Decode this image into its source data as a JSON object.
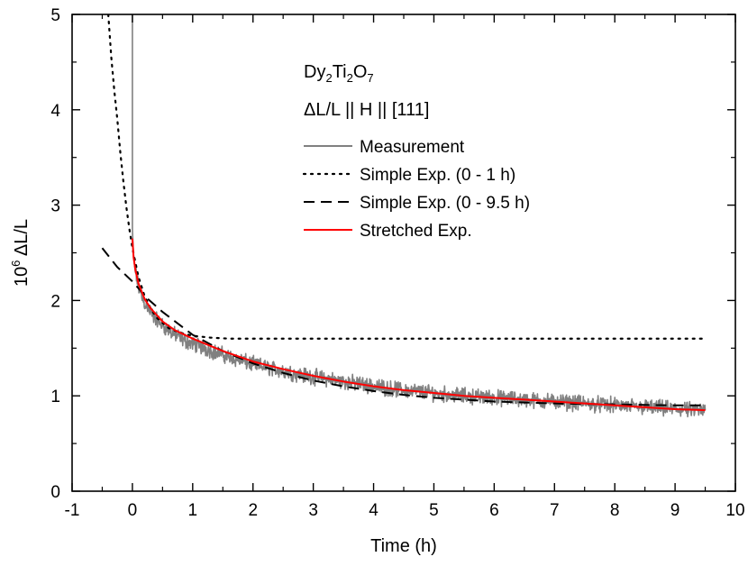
{
  "chart_data": {
    "type": "line",
    "xlabel": "Time (h)",
    "ylabel": "10^6 ΔL/L",
    "ylabel_parts": {
      "prefix": "10",
      "sup": "6",
      "rest": " ΔL/L"
    },
    "xlim": [
      -1,
      10
    ],
    "ylim": [
      0,
      5
    ],
    "x_ticks": [
      -1,
      0,
      1,
      2,
      3,
      4,
      5,
      6,
      7,
      8,
      9,
      10
    ],
    "x_tick_labels": [
      "-1",
      "0",
      "1",
      "2",
      "3",
      "4",
      "5",
      "6",
      "7",
      "8",
      "9",
      "10"
    ],
    "y_ticks": [
      0,
      1,
      2,
      3,
      4,
      5
    ],
    "y_tick_labels": [
      "0",
      "1",
      "2",
      "3",
      "4",
      "5"
    ],
    "grid": false,
    "legend_position": "top-right",
    "annotations": [
      {
        "id": "compound",
        "parts": [
          "Dy",
          "2",
          "Ti",
          "2",
          "O",
          "7"
        ]
      },
      {
        "id": "geometry",
        "text": "ΔL/L || H || [111]"
      }
    ],
    "series": [
      {
        "name": "Measurement",
        "style": "solid",
        "color": "#808080",
        "noise_amplitude": 0.1,
        "x": [
          0.0,
          0.0,
          0.01,
          0.03,
          0.05,
          0.1,
          0.15,
          0.2,
          0.3,
          0.4,
          0.5,
          0.7,
          0.9,
          1.2,
          1.5,
          2.0,
          2.5,
          3.0,
          3.5,
          4.0,
          4.5,
          5.0,
          5.5,
          6.0,
          6.5,
          7.0,
          7.5,
          8.0,
          8.5,
          9.0,
          9.5
        ],
        "y": [
          5.0,
          2.75,
          2.55,
          2.4,
          2.3,
          2.15,
          2.05,
          1.98,
          1.88,
          1.8,
          1.74,
          1.64,
          1.57,
          1.5,
          1.43,
          1.33,
          1.26,
          1.2,
          1.15,
          1.1,
          1.06,
          1.03,
          1.0,
          0.98,
          0.96,
          0.94,
          0.92,
          0.9,
          0.88,
          0.86,
          0.84
        ]
      },
      {
        "name": "Simple Exp. (0 - 1 h)",
        "style": "dotted",
        "color": "#000000",
        "x": [
          -0.4,
          -0.35,
          -0.3,
          -0.25,
          -0.2,
          -0.15,
          -0.1,
          -0.05,
          0.0,
          0.1,
          0.2,
          0.3,
          0.4,
          0.6,
          0.8,
          1.0,
          1.3,
          1.6,
          2.0,
          3.0,
          5.0,
          7.0,
          9.5
        ],
        "y": [
          5.0,
          4.55,
          4.2,
          3.9,
          3.55,
          3.25,
          2.98,
          2.75,
          2.55,
          2.25,
          2.05,
          1.92,
          1.82,
          1.71,
          1.66,
          1.63,
          1.61,
          1.6,
          1.6,
          1.6,
          1.6,
          1.6,
          1.6
        ]
      },
      {
        "name": "Simple Exp. (0 - 9.5 h)",
        "style": "dashed",
        "color": "#000000",
        "x": [
          -0.5,
          -0.25,
          0.0,
          0.25,
          0.5,
          1.0,
          1.5,
          2.0,
          2.5,
          3.0,
          3.5,
          4.0,
          4.5,
          5.0,
          5.5,
          6.0,
          7.0,
          8.0,
          9.0,
          9.5
        ],
        "y": [
          2.55,
          2.35,
          2.2,
          2.02,
          1.88,
          1.64,
          1.47,
          1.34,
          1.24,
          1.16,
          1.1,
          1.05,
          1.01,
          0.98,
          0.96,
          0.94,
          0.92,
          0.91,
          0.9,
          0.9
        ]
      },
      {
        "name": "Stretched Exp.",
        "style": "solid",
        "color": "#ff0000",
        "x": [
          0.0,
          0.02,
          0.05,
          0.1,
          0.2,
          0.3,
          0.5,
          0.7,
          1.0,
          1.5,
          2.0,
          2.5,
          3.0,
          3.5,
          4.0,
          4.5,
          5.0,
          5.5,
          6.0,
          6.5,
          7.0,
          7.5,
          8.0,
          8.5,
          9.0,
          9.5
        ],
        "y": [
          2.65,
          2.45,
          2.32,
          2.18,
          2.02,
          1.92,
          1.78,
          1.69,
          1.6,
          1.47,
          1.36,
          1.28,
          1.21,
          1.15,
          1.1,
          1.06,
          1.03,
          1.0,
          0.98,
          0.96,
          0.94,
          0.92,
          0.9,
          0.88,
          0.86,
          0.85
        ]
      }
    ]
  }
}
